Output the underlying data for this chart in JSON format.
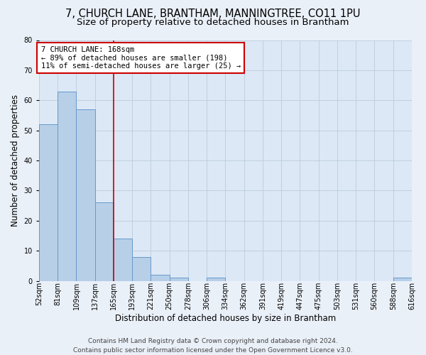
{
  "title": "7, CHURCH LANE, BRANTHAM, MANNINGTREE, CO11 1PU",
  "subtitle": "Size of property relative to detached houses in Brantham",
  "xlabel": "Distribution of detached houses by size in Brantham",
  "ylabel": "Number of detached properties",
  "bar_values": [
    52,
    63,
    57,
    26,
    14,
    8,
    2,
    1,
    0,
    1,
    0,
    0,
    0,
    0,
    0,
    0,
    0,
    0,
    0,
    1
  ],
  "x_labels": [
    "52sqm",
    "81sqm",
    "109sqm",
    "137sqm",
    "165sqm",
    "193sqm",
    "221sqm",
    "250sqm",
    "278sqm",
    "306sqm",
    "334sqm",
    "362sqm",
    "391sqm",
    "419sqm",
    "447sqm",
    "475sqm",
    "503sqm",
    "531sqm",
    "560sqm",
    "588sqm",
    "616sqm"
  ],
  "bar_color": "#b8cfe8",
  "bar_edge_color": "#6699cc",
  "annotation_line1": "7 CHURCH LANE: 168sqm",
  "annotation_line2": "← 89% of detached houses are smaller (198)",
  "annotation_line3": "11% of semi-detached houses are larger (25) →",
  "annotation_box_facecolor": "#ffffff",
  "annotation_box_edgecolor": "#cc0000",
  "vline_color": "#cc0000",
  "ylim": [
    0,
    80
  ],
  "yticks": [
    0,
    10,
    20,
    30,
    40,
    50,
    60,
    70,
    80
  ],
  "grid_color": "#bbccdd",
  "plot_bg_color": "#dce8f5",
  "fig_bg_color": "#eaf0f8",
  "footer_line1": "Contains HM Land Registry data © Crown copyright and database right 2024.",
  "footer_line2": "Contains public sector information licensed under the Open Government Licence v3.0.",
  "title_fontsize": 10.5,
  "subtitle_fontsize": 9.5,
  "xlabel_fontsize": 8.5,
  "ylabel_fontsize": 8.5,
  "tick_fontsize": 7,
  "annotation_fontsize": 7.5,
  "footer_fontsize": 6.5,
  "vline_x": 3.5
}
